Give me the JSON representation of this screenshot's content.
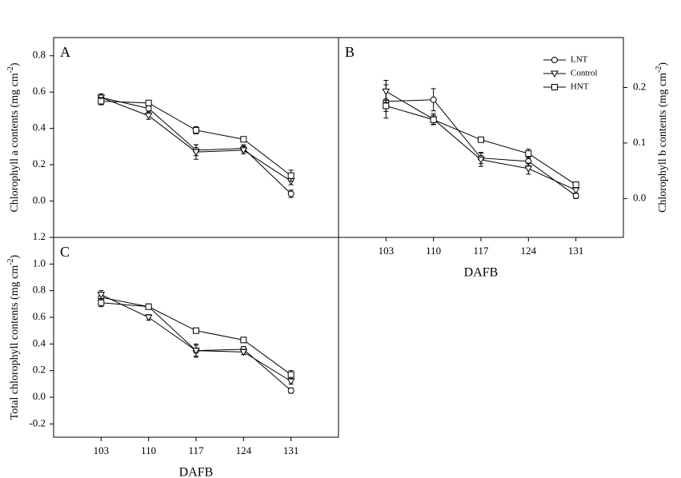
{
  "chart_data": [
    {
      "type": "line",
      "label": "A",
      "ylabel": [
        "Chlorophyll a contents (mg cm",
        "-2",
        ")"
      ],
      "x": [
        103,
        110,
        117,
        124,
        131
      ],
      "xlim": [
        96,
        138
      ],
      "ylim": [
        -0.2,
        0.9
      ],
      "yticks": [
        {
          "value": 0,
          "label": "0.0"
        },
        0.2,
        0.4,
        0.6,
        0.8
      ],
      "y_axis_side": "left",
      "series": [
        {
          "marker": "circle",
          "values": [
            0.57,
            0.51,
            0.28,
            0.29,
            0.04
          ],
          "errors": [
            0.02,
            0.02,
            0.03,
            0.02,
            0.02
          ]
        },
        {
          "marker": "triangle",
          "values": [
            0.57,
            0.47,
            0.27,
            0.28,
            0.11
          ],
          "errors": [
            0.02,
            0.02,
            0.04,
            0.02,
            0.02
          ]
        },
        {
          "marker": "square",
          "values": [
            0.55,
            0.54,
            0.39,
            0.34,
            0.14
          ],
          "errors": [
            0.02,
            0.01,
            0.02,
            0.01,
            0.03
          ]
        }
      ]
    },
    {
      "type": "line",
      "label": "B",
      "xlabel": "DAFB",
      "ylabel": [
        "Chlorophyll b contents (mg cm",
        "-2",
        ")"
      ],
      "x": [
        103,
        110,
        117,
        124,
        131
      ],
      "xlim": [
        96,
        138
      ],
      "ylim": [
        -0.07,
        0.29
      ],
      "xticks": [
        103,
        110,
        117,
        124,
        131
      ],
      "yticks": [
        {
          "value": 0,
          "label": "0.0"
        },
        0.1,
        0.2
      ],
      "y_axis_side": "right",
      "legend": "upper right",
      "series": [
        {
          "name": "LNT",
          "marker": "circle",
          "values": [
            0.175,
            0.178,
            0.073,
            0.067,
            0.005
          ],
          "errors": [
            0.03,
            0.02,
            0.01,
            0.008,
            0.005
          ]
        },
        {
          "name": "Control",
          "marker": "triangle",
          "values": [
            0.193,
            0.143,
            0.07,
            0.054,
            0.015
          ],
          "errors": [
            0.02,
            0.01,
            0.012,
            0.01,
            0.005
          ]
        },
        {
          "name": "HNT",
          "marker": "square",
          "values": [
            0.167,
            0.142,
            0.106,
            0.081,
            0.025
          ],
          "errors": [
            0.01,
            0.008,
            0.004,
            0.008,
            0.004
          ]
        }
      ]
    },
    {
      "type": "line",
      "label": "C",
      "xlabel": "DAFB",
      "ylabel": [
        "Total chlorophyll contents (mg cm",
        "-2",
        ")"
      ],
      "x": [
        103,
        110,
        117,
        124,
        131
      ],
      "xlim": [
        96,
        138
      ],
      "ylim": [
        -0.3,
        1.2
      ],
      "xticks": [
        103,
        110,
        117,
        124,
        131
      ],
      "yticks": [
        -0.2,
        {
          "value": 0,
          "label": "0.0"
        },
        0.2,
        0.4,
        0.6,
        0.8,
        {
          "value": 1,
          "label": "1.0"
        },
        1.2
      ],
      "y_axis_side": "left",
      "series": [
        {
          "marker": "circle",
          "values": [
            0.75,
            0.68,
            0.35,
            0.36,
            0.05
          ],
          "errors": [
            0.03,
            0.02,
            0.04,
            0.02,
            0.02
          ]
        },
        {
          "marker": "triangle",
          "values": [
            0.77,
            0.6,
            0.35,
            0.34,
            0.12
          ],
          "errors": [
            0.03,
            0.02,
            0.05,
            0.02,
            0.02
          ]
        },
        {
          "marker": "square",
          "values": [
            0.71,
            0.68,
            0.5,
            0.43,
            0.17
          ],
          "errors": [
            0.03,
            0.02,
            0.02,
            0.02,
            0.03
          ]
        }
      ]
    }
  ]
}
